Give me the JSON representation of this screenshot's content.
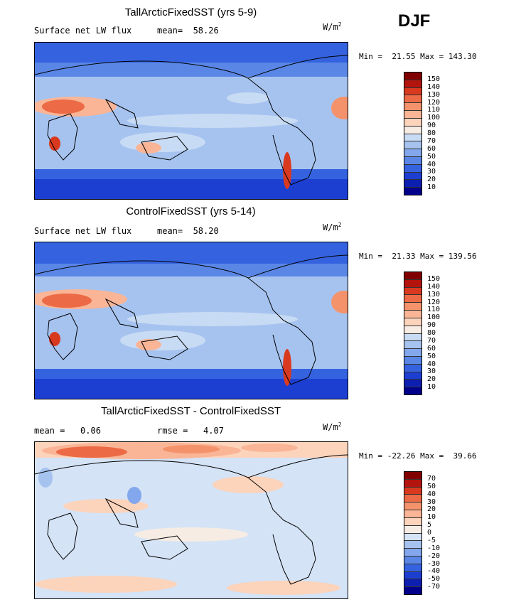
{
  "season": "DJF",
  "panels": [
    {
      "title": "TallArcticFixedSST (yrs 5-9)",
      "stat_left": "Surface net LW flux",
      "stat_right": "mean=  58.26",
      "units_base": "W/m",
      "units_exp": "2",
      "minmax": "Min =  21.55 Max = 143.30",
      "colorbar_labels": [
        "150",
        "140",
        "130",
        "120",
        "110",
        "100",
        "90",
        "80",
        "70",
        "60",
        "50",
        "40",
        "30",
        "20",
        "10"
      ],
      "colorbar_colors": [
        "#800000",
        "#b3140d",
        "#d93a1f",
        "#ec6a45",
        "#f4936b",
        "#f9b596",
        "#fcd3bb",
        "#f6ece4",
        "#c8dbf4",
        "#a6c3f0",
        "#83a7ec",
        "#5a87e6",
        "#3563e0",
        "#1c3fd2",
        "#0d1fb0",
        "#00008a"
      ]
    },
    {
      "title": "ControlFixedSST (yrs 5-14)",
      "stat_left": "Surface net LW flux",
      "stat_right": "mean=  58.20",
      "units_base": "W/m",
      "units_exp": "2",
      "minmax": "Min =  21.33 Max = 139.56",
      "colorbar_labels": [
        "150",
        "140",
        "130",
        "120",
        "110",
        "100",
        "90",
        "80",
        "70",
        "60",
        "50",
        "40",
        "30",
        "20",
        "10"
      ],
      "colorbar_colors": [
        "#800000",
        "#b3140d",
        "#d93a1f",
        "#ec6a45",
        "#f4936b",
        "#f9b596",
        "#fcd3bb",
        "#f6ece4",
        "#c8dbf4",
        "#a6c3f0",
        "#83a7ec",
        "#5a87e6",
        "#3563e0",
        "#1c3fd2",
        "#0d1fb0",
        "#00008a"
      ]
    },
    {
      "title": "TallArcticFixedSST - ControlFixedSST",
      "stat_left": "mean =   0.06",
      "stat_right": "rmse =   4.07",
      "units_base": "W/m",
      "units_exp": "2",
      "minmax": "Min = -22.26 Max =  39.66",
      "colorbar_labels": [
        "70",
        "50",
        "40",
        "30",
        "20",
        "10",
        "5",
        "0",
        "-5",
        "-10",
        "-20",
        "-30",
        "-40",
        "-50",
        "-70"
      ],
      "colorbar_colors": [
        "#800000",
        "#b3140d",
        "#d93a1f",
        "#ec6a45",
        "#f4936b",
        "#f9b596",
        "#fcd3bb",
        "#f6ece4",
        "#d4e3f6",
        "#a6c3f0",
        "#83a7ec",
        "#5a87e6",
        "#3563e0",
        "#1c3fd2",
        "#0d1fb0",
        "#00008a"
      ]
    }
  ]
}
